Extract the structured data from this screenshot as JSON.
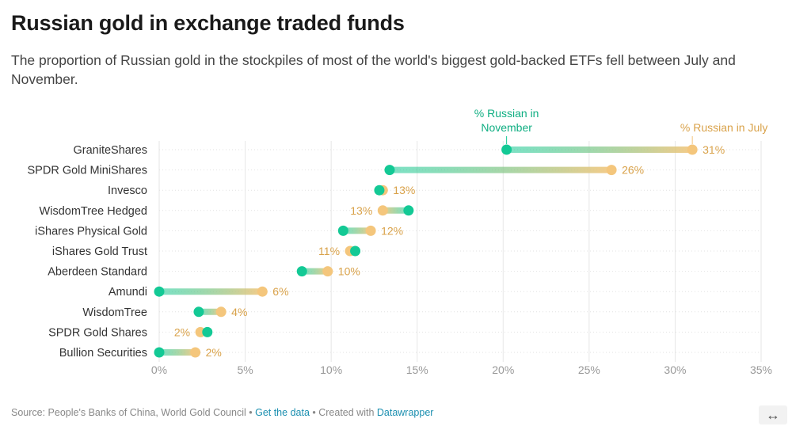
{
  "header": {
    "title": "Russian gold in exchange traded funds",
    "subtitle": "The proportion of Russian gold in the stockpiles of most of the world's biggest gold-backed ETFs fell between July and November."
  },
  "chart_data": {
    "type": "dot-range",
    "xlim": [
      0,
      35
    ],
    "xticks": [
      "0%",
      "5%",
      "10%",
      "15%",
      "20%",
      "25%",
      "30%",
      "35%"
    ],
    "xtick_values": [
      0,
      5,
      10,
      15,
      20,
      25,
      30,
      35
    ],
    "series": [
      {
        "name": "% Russian in November",
        "key": "nov",
        "color": "#13c995"
      },
      {
        "name": "% Russian in July",
        "key": "jul",
        "color": "#f4c67c"
      }
    ],
    "legend": {
      "nov_lines": [
        "% Russian in",
        "November"
      ],
      "jul_lines": [
        "% Russian in July"
      ]
    },
    "rows": [
      {
        "label": "GraniteShares",
        "nov": 20.2,
        "jul": 31.0,
        "value_label": "31%"
      },
      {
        "label": "SPDR Gold MiniShares",
        "nov": 13.4,
        "jul": 26.3,
        "value_label": "26%"
      },
      {
        "label": "Invesco",
        "nov": 12.8,
        "jul": 13.0,
        "value_label": "13%"
      },
      {
        "label": "WisdomTree Hedged",
        "nov": 14.5,
        "jul": 13.0,
        "value_label": "13%"
      },
      {
        "label": "iShares Physical Gold",
        "nov": 10.7,
        "jul": 12.3,
        "value_label": "12%"
      },
      {
        "label": "iShares Gold Trust",
        "nov": 11.4,
        "jul": 11.1,
        "value_label": "11%"
      },
      {
        "label": "Aberdeen Standard",
        "nov": 8.3,
        "jul": 9.8,
        "value_label": "10%"
      },
      {
        "label": "Amundi",
        "nov": 0.0,
        "jul": 6.0,
        "value_label": "6%"
      },
      {
        "label": "WisdomTree",
        "nov": 2.3,
        "jul": 3.6,
        "value_label": "4%"
      },
      {
        "label": "SPDR Gold Shares",
        "nov": 2.8,
        "jul": 2.4,
        "value_label": "2%"
      },
      {
        "label": "Bullion Securities",
        "nov": 0.0,
        "jul": 2.1,
        "value_label": "2%"
      }
    ]
  },
  "footer": {
    "source": "Source: People's Banks of China, World Gold Council",
    "sep1": " • ",
    "get_data": "Get the data",
    "sep2": " • Created with ",
    "datawrapper": "Datawrapper"
  },
  "controls": {
    "expand_glyph": "↔"
  }
}
